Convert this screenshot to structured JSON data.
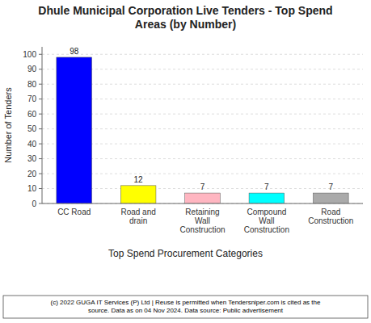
{
  "chart_data": {
    "type": "bar",
    "title": "Dhule Municipal Corporation Live Tenders - Top Spend\nAreas (by Number)",
    "categories": [
      "CC Road",
      "Road and\ndrain",
      "Retaining\nWall\nConstruction",
      "Compound\nWall\nConstruction",
      "Road\nConstruction"
    ],
    "values": [
      98,
      12,
      7,
      7,
      7
    ],
    "colors": [
      "#0000FF",
      "#FFFF00",
      "#FFB6C1",
      "#00FFFF",
      "#AAAAAA"
    ],
    "y_label": "Number of Tenders",
    "x_label": "Top Spend Procurement Categories",
    "ylim": [
      0,
      105
    ],
    "yticks": [
      0,
      10,
      20,
      30,
      40,
      50,
      60,
      70,
      80,
      90,
      100
    ],
    "grid": true,
    "data_labels": true,
    "annotations": [
      "(c) 2022 GUGA IT Services (P) Ltd | Reuse is permitted when Tendersniper.com is cited as the\nsource. Data as on 04 Nov 2024. Data source: Public advertisement"
    ]
  }
}
